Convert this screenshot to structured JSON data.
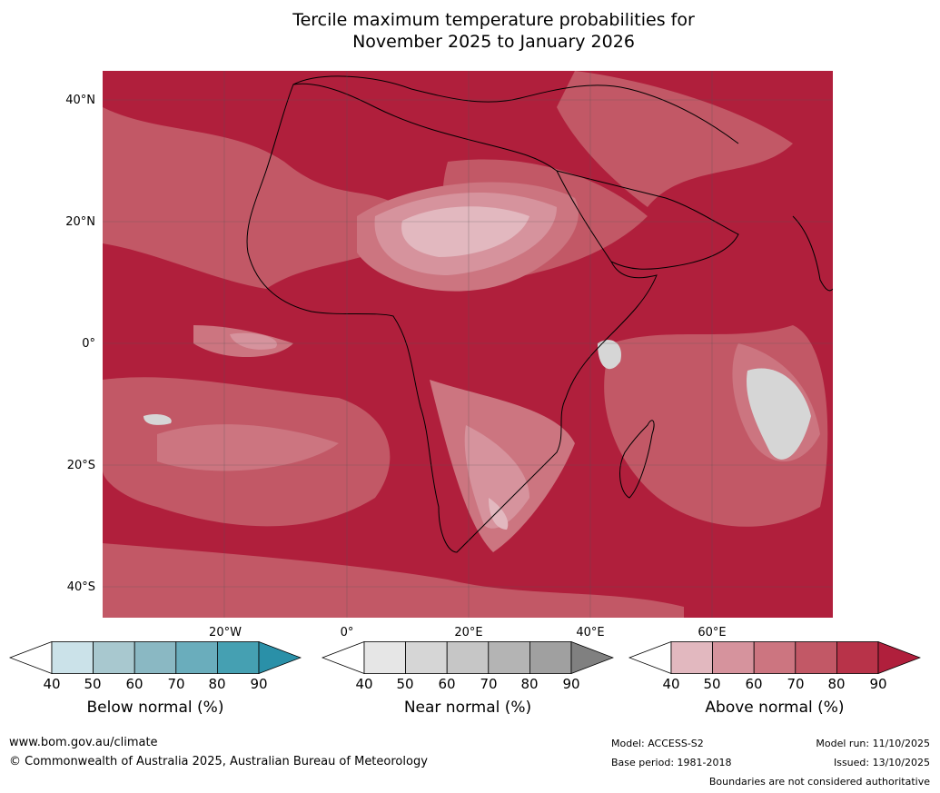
{
  "title_line1": "Tercile maximum temperature probabilities for",
  "title_line2": "November 2025 to January 2026",
  "lat_labels": [
    "40°N",
    "20°N",
    "0°",
    "20°S",
    "40°S"
  ],
  "lon_labels": [
    "20°W",
    "0°",
    "20°E",
    "40°E",
    "60°E"
  ],
  "colorbars": [
    {
      "label": "Below normal (%)",
      "ticks": [
        "40",
        "50",
        "60",
        "70",
        "80",
        "90"
      ],
      "colors": [
        "#ffffff",
        "#cbe2e9",
        "#a8c8cf",
        "#8ab8c3",
        "#6aadbc",
        "#45a0b2",
        "#2a90a8"
      ]
    },
    {
      "label": "Near normal (%)",
      "ticks": [
        "40",
        "50",
        "60",
        "70",
        "80",
        "90"
      ],
      "colors": [
        "#ffffff",
        "#e6e6e6",
        "#d6d6d6",
        "#c6c6c6",
        "#b4b4b4",
        "#a0a0a0",
        "#808080"
      ]
    },
    {
      "label": "Above normal (%)",
      "ticks": [
        "40",
        "50",
        "60",
        "70",
        "80",
        "90"
      ],
      "colors": [
        "#ffffff",
        "#e2b8bf",
        "#d6939d",
        "#cc7580",
        "#c25866",
        "#b83349",
        "#b01f3c"
      ]
    }
  ],
  "footer": {
    "url": "www.bom.gov.au/climate",
    "copyright": "© Commonwealth of Australia 2025, Australian Bureau of Meteorology",
    "model": "Model: ACCESS-S2",
    "base_period": "Base period: 1981-2018",
    "model_run": "Model run: 11/10/2025",
    "issued": "Issued: 13/10/2025",
    "disclaimer": "Boundaries are not considered authoritative"
  }
}
